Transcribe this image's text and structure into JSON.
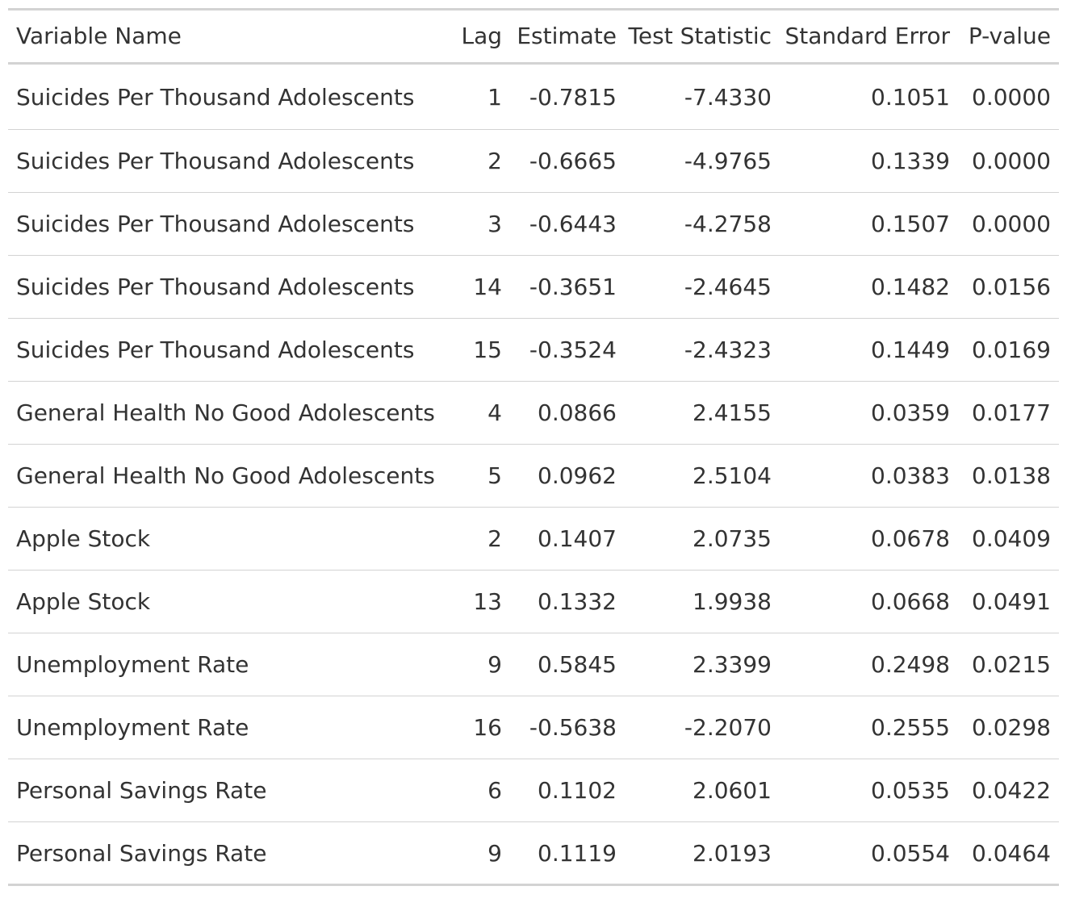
{
  "table": {
    "headers": [
      "Variable Name",
      "Lag",
      "Estimate",
      "Test Statistic",
      "Standard Error",
      "P-value"
    ],
    "rows": [
      [
        "Suicides Per Thousand Adolescents",
        "1",
        "-0.7815",
        "-7.4330",
        "0.1051",
        "0.0000"
      ],
      [
        "Suicides Per Thousand Adolescents",
        "2",
        "-0.6665",
        "-4.9765",
        "0.1339",
        "0.0000"
      ],
      [
        "Suicides Per Thousand Adolescents",
        "3",
        "-0.6443",
        "-4.2758",
        "0.1507",
        "0.0000"
      ],
      [
        "Suicides Per Thousand Adolescents",
        "14",
        "-0.3651",
        "-2.4645",
        "0.1482",
        "0.0156"
      ],
      [
        "Suicides Per Thousand Adolescents",
        "15",
        "-0.3524",
        "-2.4323",
        "0.1449",
        "0.0169"
      ],
      [
        "General Health No Good Adolescents",
        "4",
        "0.0866",
        "2.4155",
        "0.0359",
        "0.0177"
      ],
      [
        "General Health No Good Adolescents",
        "5",
        "0.0962",
        "2.5104",
        "0.0383",
        "0.0138"
      ],
      [
        "Apple Stock",
        "2",
        "0.1407",
        "2.0735",
        "0.0678",
        "0.0409"
      ],
      [
        "Apple Stock",
        "13",
        "0.1332",
        "1.9938",
        "0.0668",
        "0.0491"
      ],
      [
        "Unemployment Rate",
        "9",
        "0.5845",
        "2.3399",
        "0.2498",
        "0.0215"
      ],
      [
        "Unemployment Rate",
        "16",
        "-0.5638",
        "-2.2070",
        "0.2555",
        "0.0298"
      ],
      [
        "Personal Savings Rate",
        "6",
        "0.1102",
        "2.0601",
        "0.0535",
        "0.0422"
      ],
      [
        "Personal Savings Rate",
        "9",
        "0.1119",
        "2.0193",
        "0.0554",
        "0.0464"
      ]
    ]
  },
  "colors": {
    "text": "#333333",
    "rule": "#d3d3d3",
    "background": "#ffffff"
  }
}
